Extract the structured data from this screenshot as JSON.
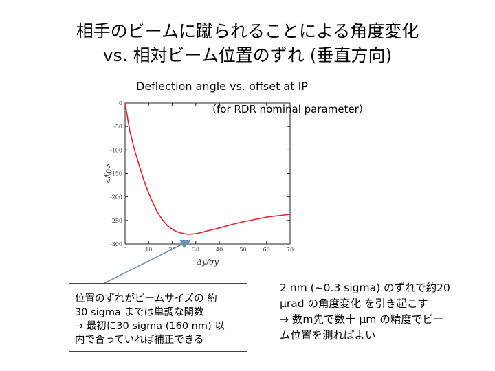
{
  "title": {
    "line1": "相手のビームに蹴られることによる角度変化",
    "line2": "vs. 相対ビーム位置のずれ (垂直方向)"
  },
  "figure": {
    "subtitle": "Deflection angle vs. offset at IP",
    "note": "（for RDR nominal parameter）"
  },
  "chart_data": {
    "type": "line",
    "xlabel": "Δy/σy",
    "ylabel": "<θy>",
    "xlim": [
      0,
      70
    ],
    "ylim": [
      -300,
      0
    ],
    "xticks": [
      0,
      10,
      20,
      30,
      40,
      50,
      60,
      70
    ],
    "yticks": [
      0,
      -50,
      -100,
      -150,
      -200,
      -250,
      -300
    ],
    "series": [
      {
        "color": "#e8202a",
        "x": [
          0,
          1,
          2,
          4,
          6,
          8,
          10,
          12,
          14,
          16,
          18,
          20,
          22,
          24,
          26,
          28,
          30,
          32,
          35,
          40,
          45,
          50,
          55,
          60,
          65,
          70
        ],
        "y": [
          0,
          -30,
          -60,
          -100,
          -133,
          -165,
          -192,
          -215,
          -235,
          -250,
          -261,
          -269,
          -274,
          -277,
          -279,
          -279,
          -278,
          -276,
          -272,
          -266,
          -259,
          -253,
          -248,
          -243,
          -240,
          -237
        ]
      }
    ]
  },
  "callout": {
    "lines": [
      "位置のずれがビームサイズの 約",
      "30 sigma までは単調な関数",
      "→ 最初に30 sigma (160 nm) 以",
      "内で合っていれば補正できる"
    ]
  },
  "right_text": {
    "lines": [
      "2 nm (~0.3 sigma) のずれで約20",
      "μrad の角度変化 を引き起こす",
      "→ 数m先で数十 μm の精度でビー",
      "ム位置を測ればよい"
    ]
  },
  "colors": {
    "curve": "#e8202a",
    "arrow": "#6d8fb0",
    "axis": "#222222"
  }
}
